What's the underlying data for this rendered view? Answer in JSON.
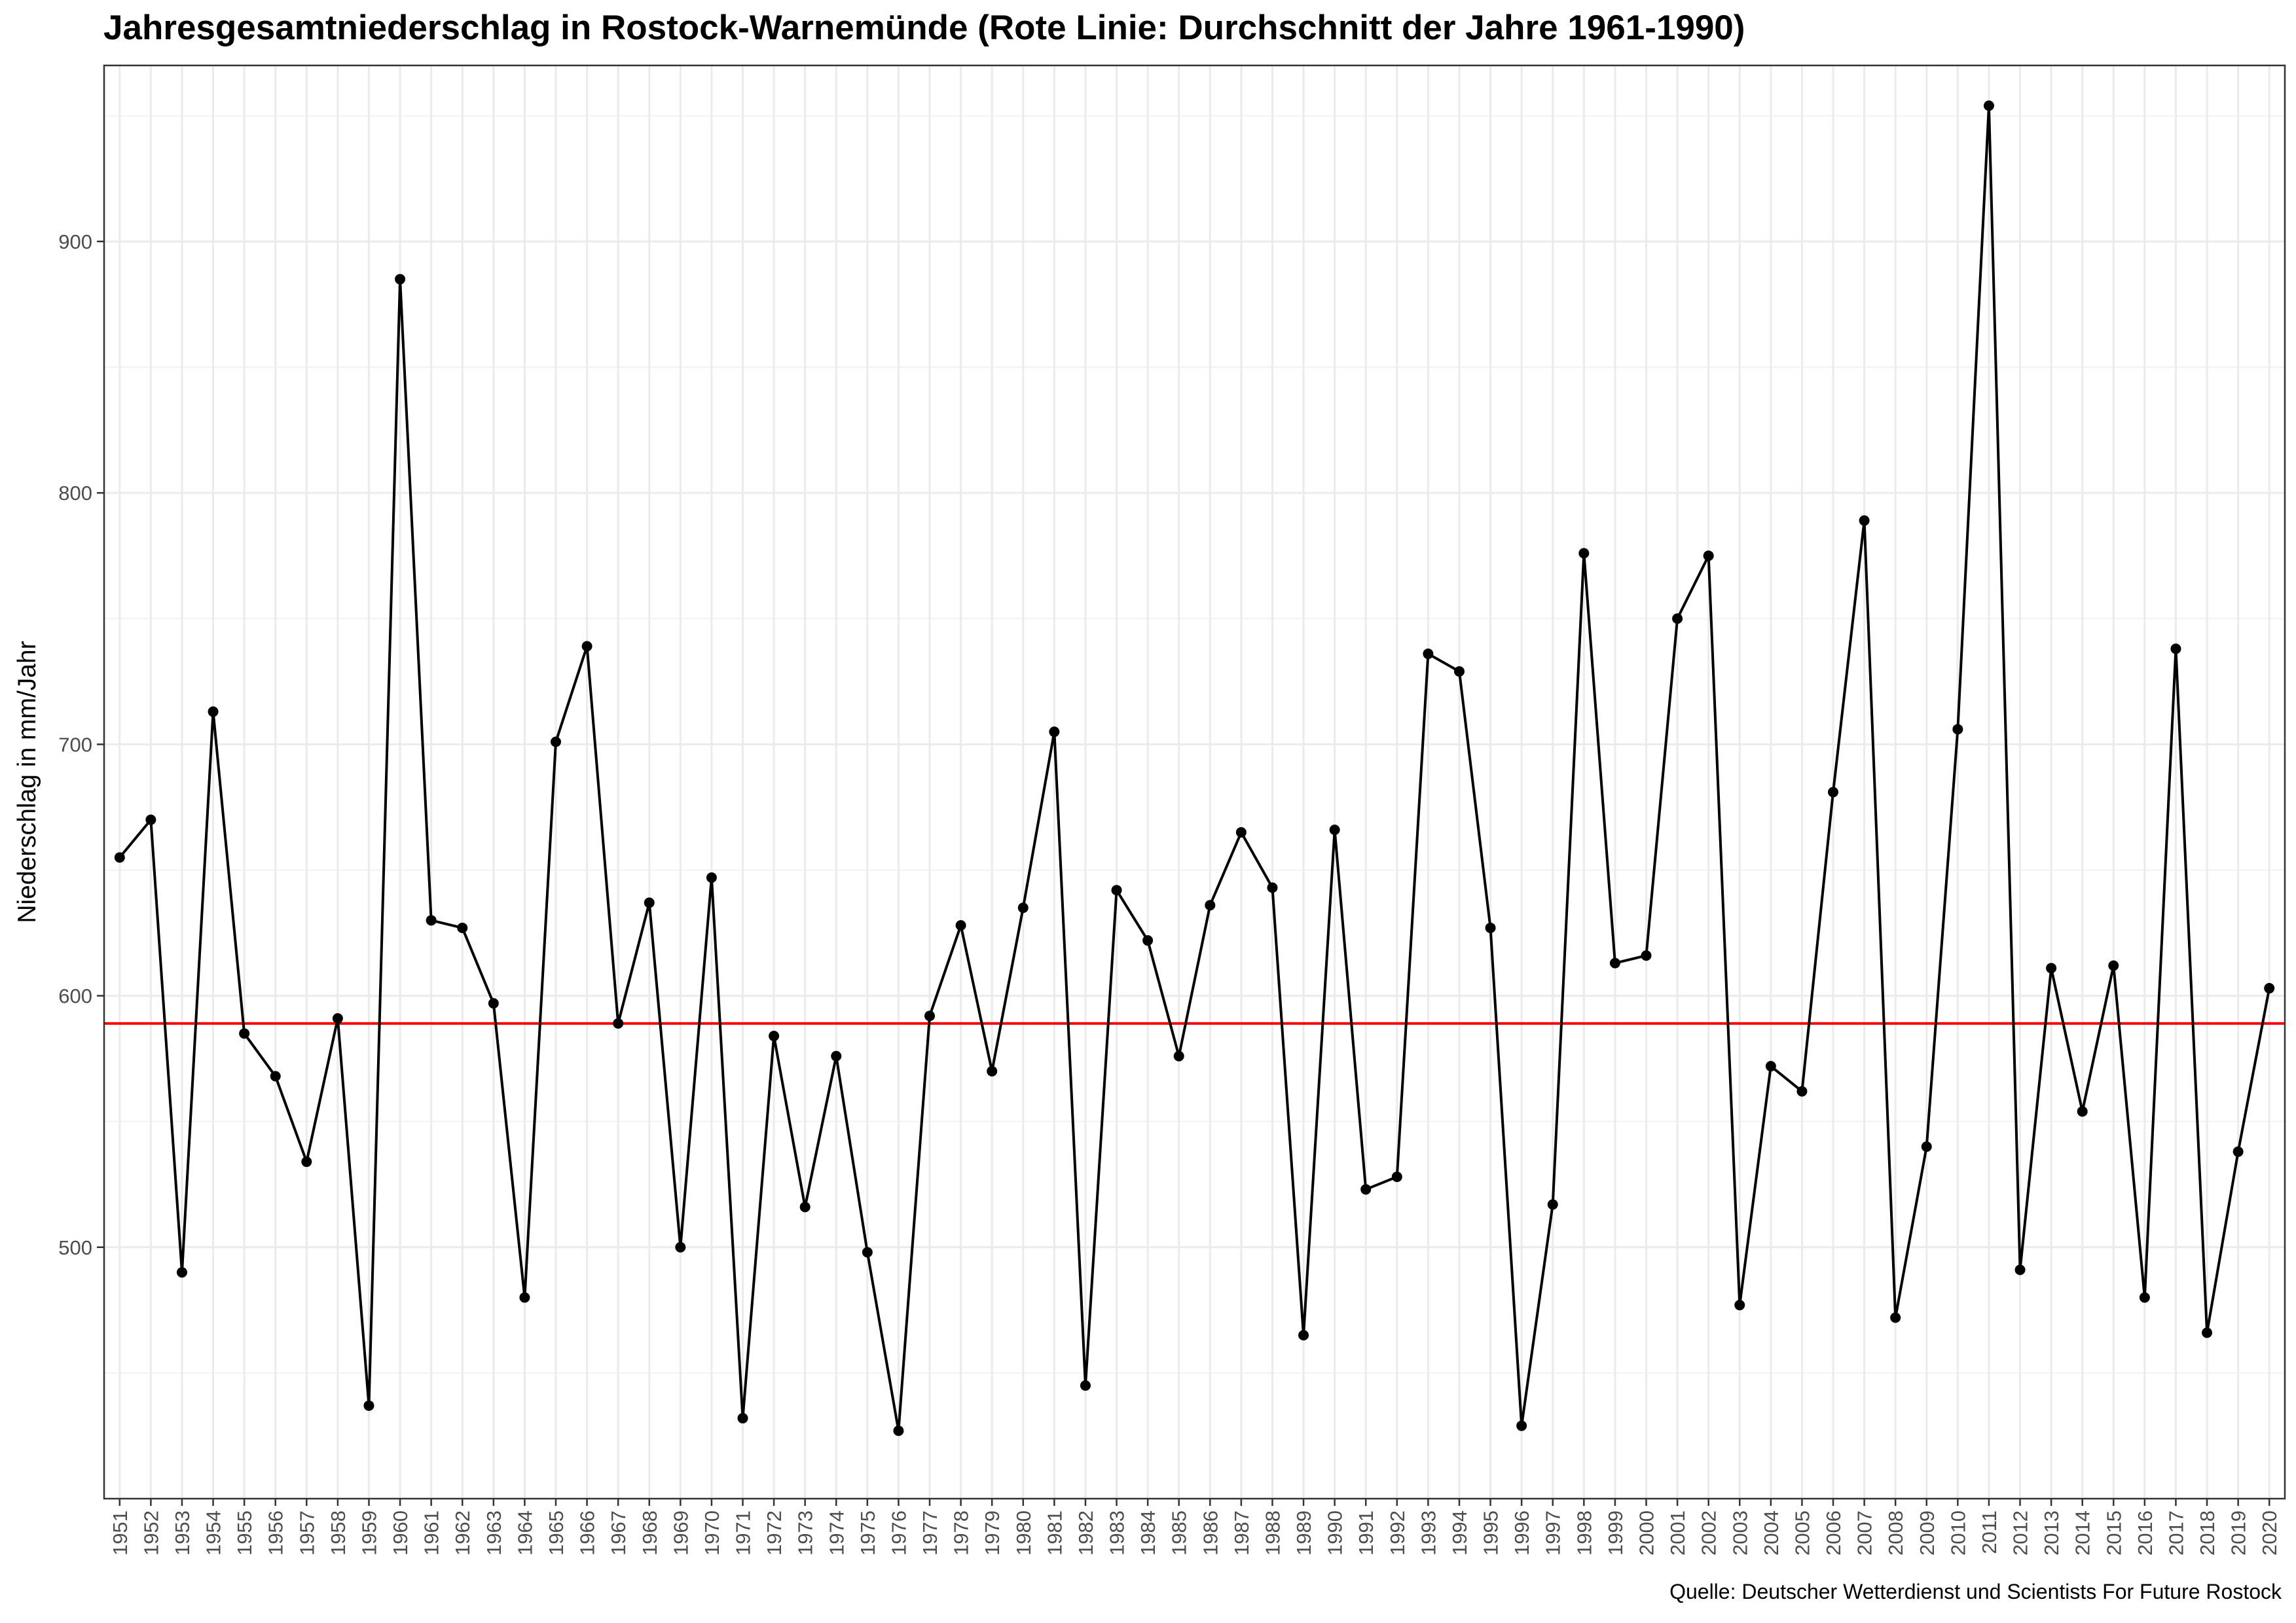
{
  "chart_data": {
    "type": "line",
    "title": "Jahresgesamtniederschlag in Rostock-Warnemünde (Rote Linie: Durchschnitt der Jahre 1961-1990)",
    "xlabel": "",
    "ylabel": "Niederschlag in mm/Jahr",
    "caption": "Quelle: Deutscher Wetterdienst und Scientists For Future Rostock",
    "x": [
      "1951",
      "1952",
      "1953",
      "1954",
      "1955",
      "1956",
      "1957",
      "1958",
      "1959",
      "1960",
      "1961",
      "1962",
      "1963",
      "1964",
      "1965",
      "1966",
      "1967",
      "1968",
      "1969",
      "1970",
      "1971",
      "1972",
      "1973",
      "1974",
      "1975",
      "1976",
      "1977",
      "1978",
      "1979",
      "1980",
      "1981",
      "1982",
      "1983",
      "1984",
      "1985",
      "1986",
      "1987",
      "1988",
      "1989",
      "1990",
      "1991",
      "1992",
      "1993",
      "1994",
      "1995",
      "1996",
      "1997",
      "1998",
      "1999",
      "2000",
      "2001",
      "2002",
      "2003",
      "2004",
      "2005",
      "2006",
      "2007",
      "2008",
      "2009",
      "2010",
      "2011",
      "2012",
      "2013",
      "2014",
      "2015",
      "2016",
      "2017",
      "2018",
      "2019",
      "2020"
    ],
    "series": [
      {
        "values": [
          655,
          670,
          490,
          713,
          585,
          568,
          534,
          591,
          437,
          885,
          630,
          627,
          597,
          480,
          701,
          739,
          589,
          637,
          500,
          647,
          432,
          584,
          516,
          576,
          498,
          427,
          592,
          628,
          570,
          635,
          705,
          445,
          642,
          622,
          576,
          636,
          665,
          643,
          465,
          666,
          523,
          528,
          736,
          729,
          627,
          429,
          517,
          776,
          613,
          616,
          750,
          775,
          477,
          572,
          562,
          681,
          789,
          472,
          540,
          706,
          954,
          491,
          611,
          554,
          612,
          480,
          738,
          466,
          538,
          603
        ],
        "color": "#000000"
      }
    ],
    "reference_line": {
      "value": 589,
      "color": "#ff0000"
    },
    "y_ticks": [
      500,
      600,
      700,
      800,
      900
    ],
    "ylim": [
      400,
      970
    ],
    "grid": true,
    "legend": "none"
  }
}
